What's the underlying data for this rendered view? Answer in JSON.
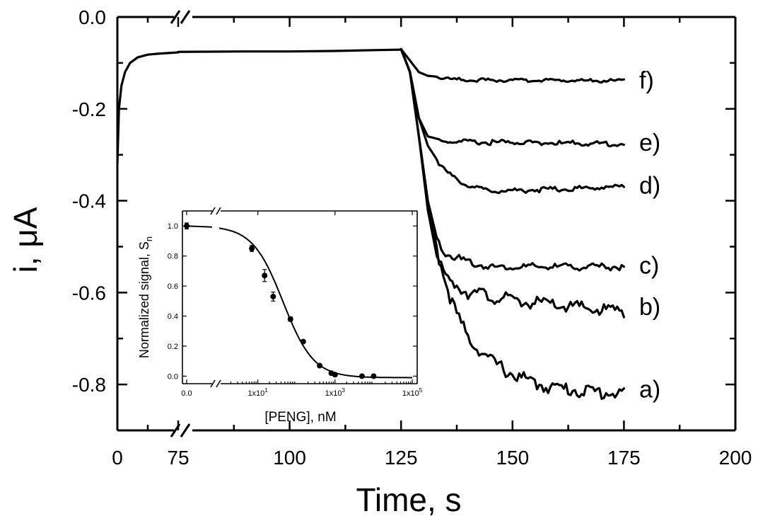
{
  "chart_data": [
    {
      "type": "line",
      "title": "",
      "xlabel": "Time, s",
      "ylabel": "i, μA",
      "xlim": [
        0,
        200
      ],
      "ylim": [
        -0.9,
        0.0
      ],
      "axis_break": "between 0 and 75 s on the time axis",
      "xticks": [
        "0",
        "75",
        "100",
        "125",
        "150",
        "175",
        "200"
      ],
      "yticks": [
        "0.0",
        "-0.2",
        "-0.4",
        "-0.6",
        "-0.8"
      ],
      "baseline": {
        "x": [
          0,
          0.3,
          0.8,
          1.5,
          2.5,
          4,
          6,
          8,
          12,
          75,
          90,
          100,
          110,
          120,
          125
        ],
        "y": [
          -0.32,
          -0.2,
          -0.15,
          -0.12,
          -0.1,
          -0.088,
          -0.082,
          -0.08,
          -0.077,
          -0.076,
          -0.075,
          -0.075,
          -0.074,
          -0.072,
          -0.071
        ]
      },
      "series": [
        {
          "name": "a)",
          "x": [
            125,
            127,
            129,
            131,
            133,
            135,
            137,
            140,
            145,
            150,
            155,
            160,
            165,
            170,
            175
          ],
          "y": [
            -0.07,
            -0.12,
            -0.26,
            -0.4,
            -0.5,
            -0.57,
            -0.63,
            -0.69,
            -0.74,
            -0.77,
            -0.79,
            -0.8,
            -0.805,
            -0.81,
            -0.81
          ]
        },
        {
          "name": "b)",
          "x": [
            125,
            127,
            129,
            131,
            133,
            135,
            140,
            145,
            150,
            155,
            160,
            165,
            170,
            175
          ],
          "y": [
            -0.07,
            -0.12,
            -0.26,
            -0.42,
            -0.52,
            -0.56,
            -0.59,
            -0.6,
            -0.61,
            -0.615,
            -0.62,
            -0.625,
            -0.63,
            -0.63
          ]
        },
        {
          "name": "c)",
          "x": [
            125,
            127,
            129,
            131,
            133,
            135,
            140,
            145,
            150,
            155,
            160,
            165,
            170,
            175
          ],
          "y": [
            -0.07,
            -0.12,
            -0.26,
            -0.4,
            -0.48,
            -0.51,
            -0.53,
            -0.54,
            -0.54,
            -0.54,
            -0.54,
            -0.54,
            -0.54,
            -0.54
          ]
        },
        {
          "name": "d)",
          "x": [
            125,
            127,
            129,
            131,
            133,
            135,
            138,
            142,
            145,
            150,
            155,
            160,
            165,
            170,
            175
          ],
          "y": [
            -0.07,
            -0.12,
            -0.22,
            -0.28,
            -0.31,
            -0.335,
            -0.355,
            -0.37,
            -0.375,
            -0.375,
            -0.373,
            -0.372,
            -0.37,
            -0.368,
            -0.366
          ]
        },
        {
          "name": "e)",
          "x": [
            125,
            127,
            129,
            131,
            133,
            135,
            140,
            145,
            150,
            155,
            160,
            165,
            170,
            175
          ],
          "y": [
            -0.07,
            -0.12,
            -0.22,
            -0.26,
            -0.265,
            -0.268,
            -0.27,
            -0.27,
            -0.27,
            -0.27,
            -0.272,
            -0.272,
            -0.273,
            -0.273
          ]
        },
        {
          "name": "f)",
          "x": [
            125,
            127,
            129,
            131,
            133,
            135,
            140,
            145,
            150,
            155,
            160,
            165,
            170,
            175
          ],
          "y": [
            -0.07,
            -0.095,
            -0.12,
            -0.128,
            -0.13,
            -0.133,
            -0.135,
            -0.136,
            -0.136,
            -0.136,
            -0.136,
            -0.136,
            -0.137,
            -0.137
          ]
        }
      ]
    },
    {
      "type": "scatter",
      "title": "",
      "xlabel": "[PENG], nM",
      "ylabel": "Normalized signal, S",
      "ylabel_subscript": "n",
      "x_scale": "log, with axis break after 0.0",
      "xlim": [
        1,
        100000
      ],
      "ylim": [
        -0.05,
        1.1
      ],
      "xticks": [
        "0.0",
        "1x10",
        "1x10",
        "1x10"
      ],
      "xtick_exponents": [
        "",
        "1",
        "3",
        "5"
      ],
      "yticks": [
        "0.0",
        "0.2",
        "0.4",
        "0.6",
        "0.8",
        "1.0"
      ],
      "points": {
        "x": [
          0,
          7,
          15,
          25,
          70,
          150,
          400,
          800,
          1000,
          5000,
          10000
        ],
        "y": [
          1.0,
          0.85,
          0.67,
          0.53,
          0.38,
          0.23,
          0.07,
          0.02,
          0.01,
          0.0,
          0.0
        ],
        "error": [
          0.02,
          0.02,
          0.04,
          0.03,
          0.015,
          0.01,
          0.01,
          0.01,
          0.01,
          0.005,
          0.005
        ]
      },
      "fit": {
        "model": "sigmoidal",
        "top": 1.0,
        "bottom": -0.01,
        "ic50_nM": 45,
        "hill": 1.1
      }
    }
  ]
}
